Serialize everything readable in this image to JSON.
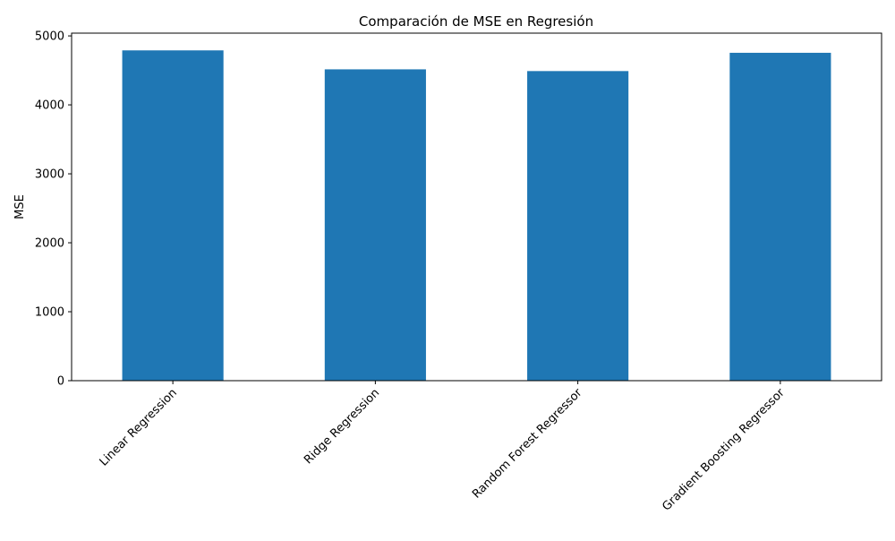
{
  "chart_data": {
    "type": "bar",
    "title": "Comparación de MSE en Regresión",
    "xlabel": "",
    "ylabel": "MSE",
    "categories": [
      "Linear Regression",
      "Ridge Regression",
      "Random Forest Regressor",
      "Gradient Boosting Regressor"
    ],
    "values": [
      4790,
      4515,
      4490,
      4755
    ],
    "ylim": [
      0,
      5040
    ],
    "yticks": [
      0,
      1000,
      2000,
      3000,
      4000,
      5000
    ],
    "bar_color": "#1f77b4",
    "grid": false,
    "legend": "none"
  }
}
